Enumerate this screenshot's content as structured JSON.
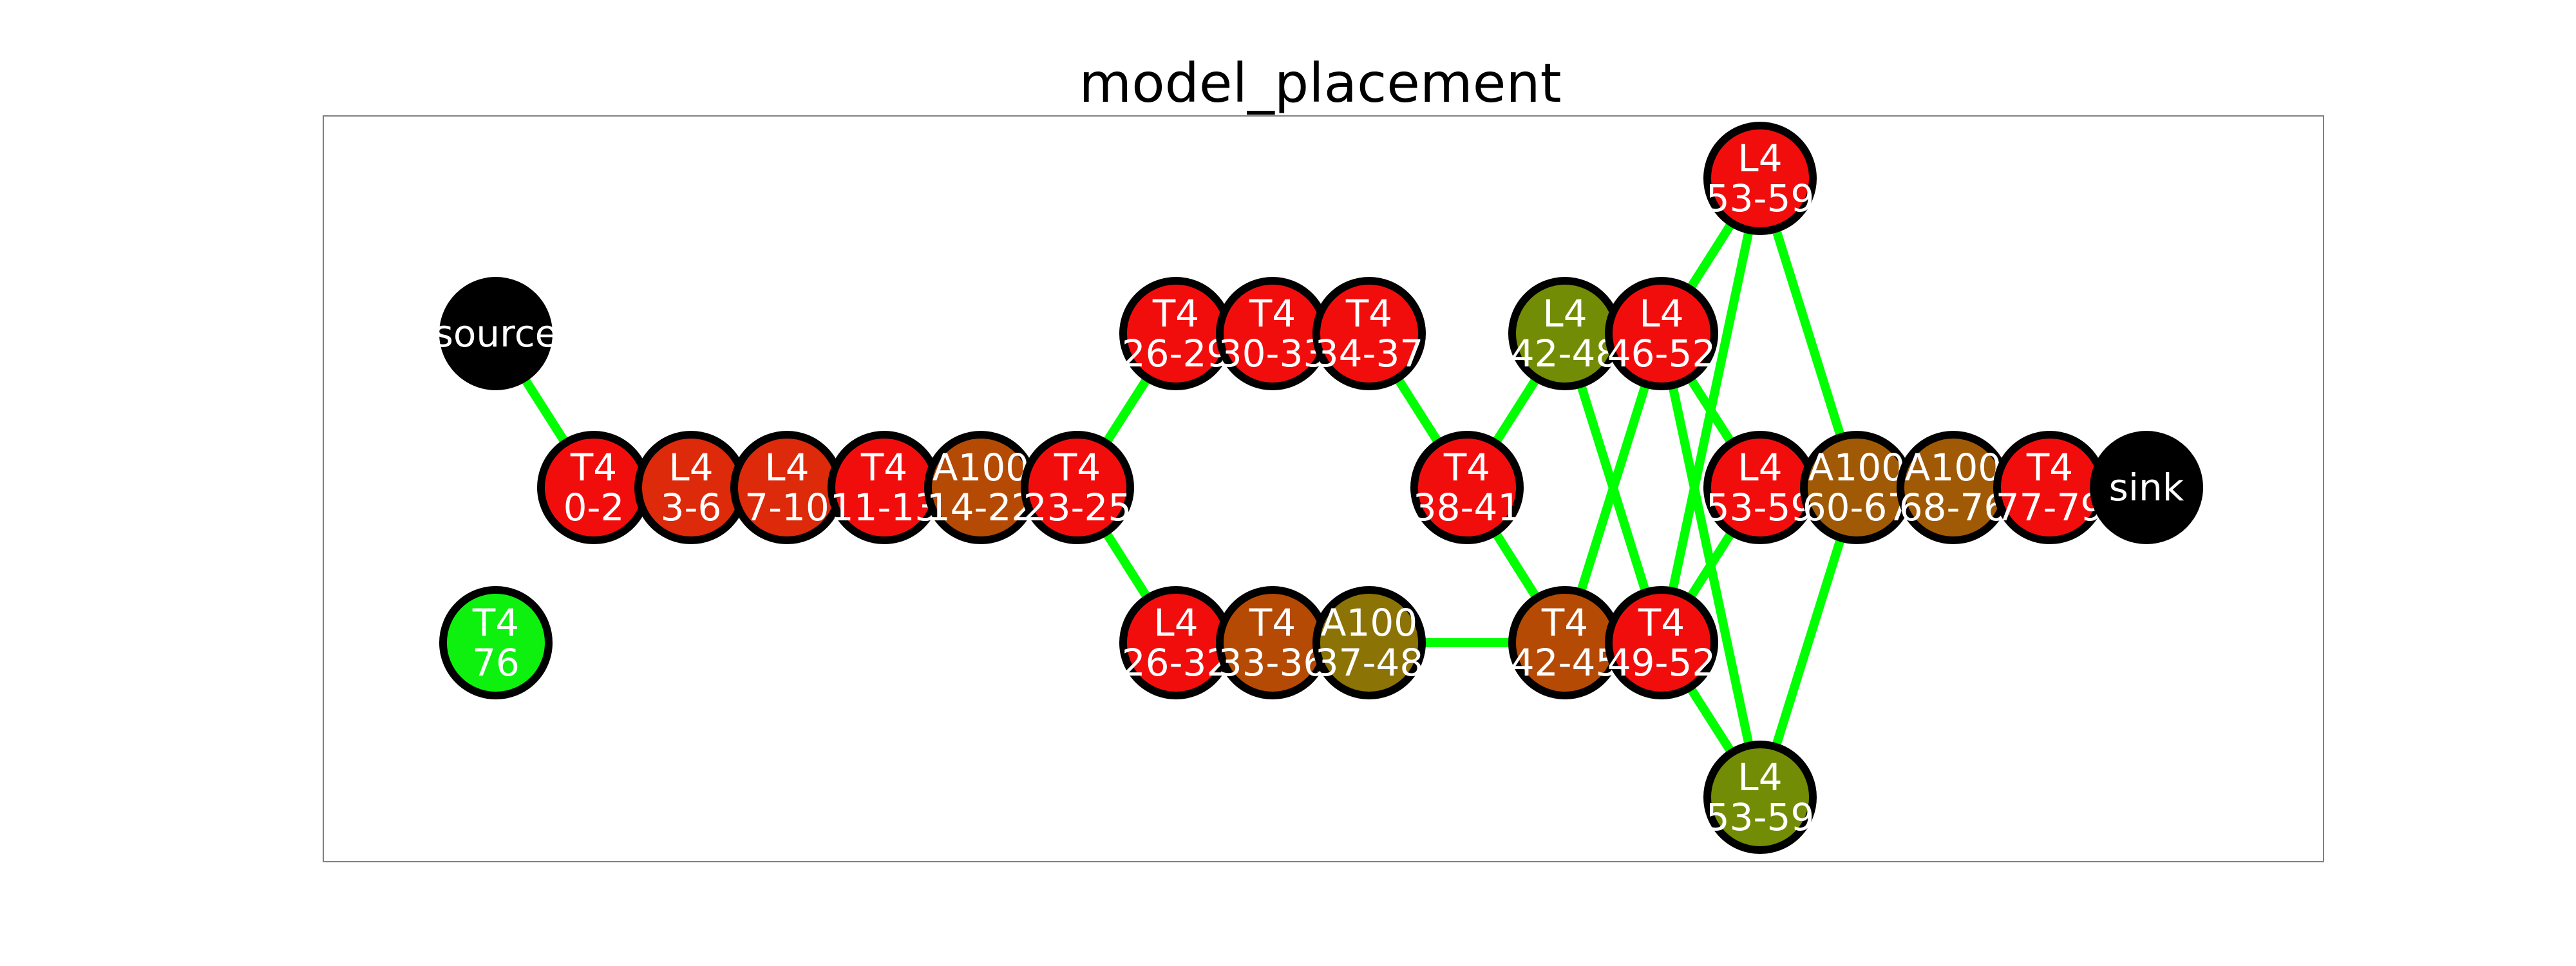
{
  "title": "model_placement",
  "colors": {
    "edge": "#00ff00",
    "node_border": "#000000",
    "terminal_fill": "#000000",
    "red": "#f20d0d",
    "red_orange": "#dc2a0a",
    "orange_brown": "#b54a05",
    "brown": "#a05a05",
    "olive": "#8c7305",
    "olive_green": "#738c05",
    "bright_green": "#0ef10e",
    "text": "#ffffff"
  },
  "nodes": [
    {
      "id": "source",
      "label": "source",
      "color": "terminal_fill",
      "kind": "terminal"
    },
    {
      "id": "t4_76",
      "label": "T4\n76",
      "color": "bright_green",
      "kind": "stage"
    },
    {
      "id": "t4_0_2",
      "label": "T4\n0-2",
      "color": "red",
      "kind": "stage"
    },
    {
      "id": "l4_3_6",
      "label": "L4\n3-6",
      "color": "red_orange",
      "kind": "stage"
    },
    {
      "id": "l4_7_10",
      "label": "L4\n7-10",
      "color": "red_orange",
      "kind": "stage"
    },
    {
      "id": "t4_11_13",
      "label": "T4\n11-13",
      "color": "red",
      "kind": "stage"
    },
    {
      "id": "a100_14_22",
      "label": "A100\n14-22",
      "color": "orange_brown",
      "kind": "stage"
    },
    {
      "id": "t4_23_25",
      "label": "T4\n23-25",
      "color": "red",
      "kind": "stage"
    },
    {
      "id": "t4_26_29",
      "label": "T4\n26-29",
      "color": "red",
      "kind": "stage"
    },
    {
      "id": "t4_30_33",
      "label": "T4\n30-33",
      "color": "red",
      "kind": "stage"
    },
    {
      "id": "t4_34_37",
      "label": "T4\n34-37",
      "color": "red",
      "kind": "stage"
    },
    {
      "id": "l4_26_32",
      "label": "L4\n26-32",
      "color": "red",
      "kind": "stage"
    },
    {
      "id": "t4_33_36",
      "label": "T4\n33-36",
      "color": "orange_brown",
      "kind": "stage"
    },
    {
      "id": "a100_37_48",
      "label": "A100\n37-48",
      "color": "olive",
      "kind": "stage"
    },
    {
      "id": "t4_38_41",
      "label": "T4\n38-41",
      "color": "red",
      "kind": "stage"
    },
    {
      "id": "l4_42_48",
      "label": "L4\n42-48",
      "color": "olive_green",
      "kind": "stage"
    },
    {
      "id": "l4_46_52",
      "label": "L4\n46-52",
      "color": "red",
      "kind": "stage"
    },
    {
      "id": "t4_42_45",
      "label": "T4\n42-45",
      "color": "orange_brown",
      "kind": "stage"
    },
    {
      "id": "t4_49_52",
      "label": "T4\n49-52",
      "color": "red",
      "kind": "stage"
    },
    {
      "id": "l4_53_59_top",
      "label": "L4\n53-59",
      "color": "red",
      "kind": "stage"
    },
    {
      "id": "l4_53_59_mid",
      "label": "L4\n53-59",
      "color": "red",
      "kind": "stage"
    },
    {
      "id": "l4_53_59_bot",
      "label": "L4\n53-59",
      "color": "olive_green",
      "kind": "stage"
    },
    {
      "id": "a100_60_67",
      "label": "A100\n60-67",
      "color": "brown",
      "kind": "stage"
    },
    {
      "id": "a100_68_76",
      "label": "A100\n68-76",
      "color": "brown",
      "kind": "stage"
    },
    {
      "id": "t4_77_79",
      "label": "T4\n77-79",
      "color": "red",
      "kind": "stage"
    },
    {
      "id": "sink",
      "label": "sink",
      "color": "terminal_fill",
      "kind": "terminal"
    }
  ],
  "edges": [
    [
      "source",
      "t4_0_2"
    ],
    [
      "t4_0_2",
      "l4_3_6"
    ],
    [
      "l4_3_6",
      "l4_7_10"
    ],
    [
      "l4_7_10",
      "t4_11_13"
    ],
    [
      "t4_11_13",
      "a100_14_22"
    ],
    [
      "a100_14_22",
      "t4_23_25"
    ],
    [
      "t4_23_25",
      "t4_26_29"
    ],
    [
      "t4_23_25",
      "l4_26_32"
    ],
    [
      "t4_26_29",
      "t4_30_33"
    ],
    [
      "t4_30_33",
      "t4_34_37"
    ],
    [
      "t4_34_37",
      "t4_38_41"
    ],
    [
      "l4_26_32",
      "t4_33_36"
    ],
    [
      "t4_33_36",
      "a100_37_48"
    ],
    [
      "a100_37_48",
      "t4_42_45"
    ],
    [
      "t4_38_41",
      "l4_42_48"
    ],
    [
      "t4_38_41",
      "t4_42_45"
    ],
    [
      "l4_42_48",
      "l4_46_52"
    ],
    [
      "l4_42_48",
      "t4_49_52"
    ],
    [
      "t4_42_45",
      "t4_49_52"
    ],
    [
      "t4_42_45",
      "l4_46_52"
    ],
    [
      "l4_46_52",
      "l4_53_59_top"
    ],
    [
      "l4_46_52",
      "l4_53_59_mid"
    ],
    [
      "l4_46_52",
      "l4_53_59_bot"
    ],
    [
      "t4_49_52",
      "l4_53_59_top"
    ],
    [
      "t4_49_52",
      "l4_53_59_mid"
    ],
    [
      "t4_49_52",
      "l4_53_59_bot"
    ],
    [
      "l4_53_59_top",
      "a100_60_67"
    ],
    [
      "l4_53_59_mid",
      "a100_60_67"
    ],
    [
      "l4_53_59_bot",
      "a100_60_67"
    ],
    [
      "a100_60_67",
      "a100_68_76"
    ],
    [
      "a100_68_76",
      "t4_77_79"
    ],
    [
      "t4_77_79",
      "sink"
    ]
  ]
}
